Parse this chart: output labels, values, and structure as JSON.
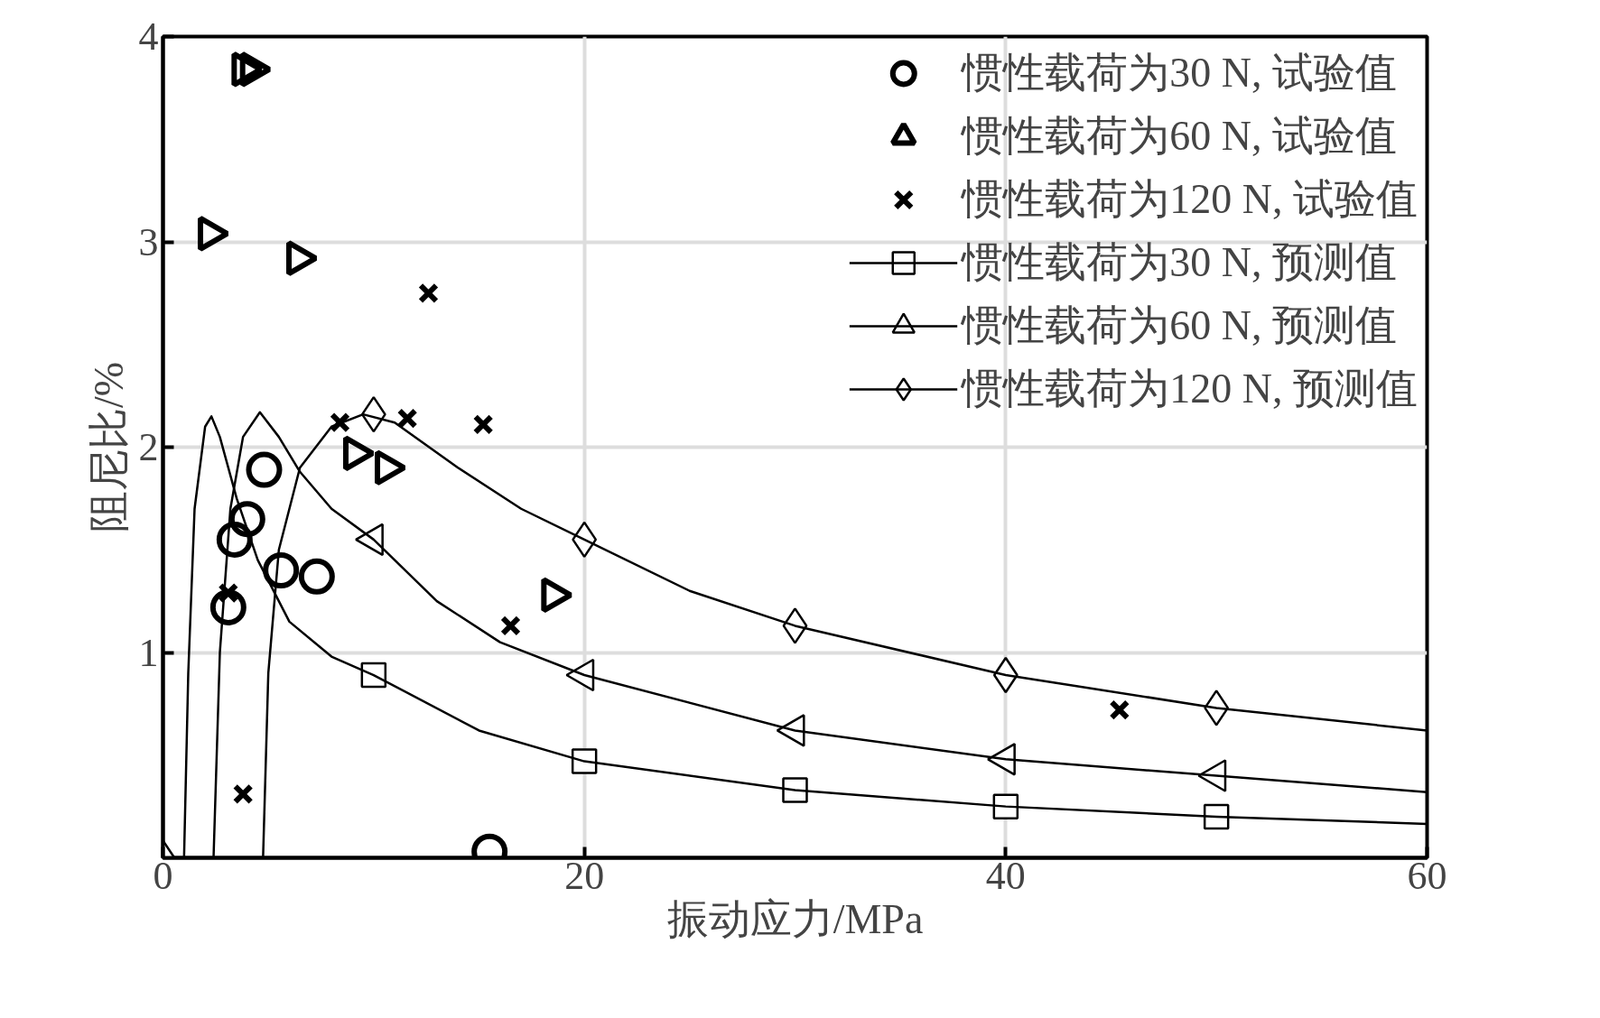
{
  "chart_data": {
    "type": "scatter",
    "xlabel": "振动应力/MPa",
    "ylabel": "阻尼比/%",
    "xlim": [
      0,
      60
    ],
    "ylim": [
      0,
      4
    ],
    "xticks": [
      0,
      20,
      40,
      60
    ],
    "yticks": [
      1,
      2,
      3,
      4
    ],
    "grid": true,
    "legend": "top right",
    "series": [
      {
        "name": "惯性载荷为30 N, 试验值",
        "marker": "circle",
        "color": "#000000",
        "x": [
          3.1,
          3.4,
          4.0,
          4.8,
          5.6,
          7.3,
          15.5
        ],
        "values": [
          1.22,
          1.55,
          1.65,
          1.89,
          1.4,
          1.37,
          0.03
        ]
      },
      {
        "name": "惯性载荷为60 N, 试验值",
        "marker": "triangle",
        "color": "#000000",
        "x": [
          3.8,
          4.2,
          2.2,
          6.4,
          9.1,
          10.6,
          18.5
        ],
        "values": [
          3.84,
          3.84,
          3.04,
          2.92,
          1.97,
          1.9,
          1.28
        ]
      },
      {
        "name": "惯性载荷为120 N, 试验值",
        "marker": "cross",
        "color": "#000000",
        "x": [
          3.1,
          3.8,
          8.4,
          11.6,
          12.6,
          15.2,
          16.5,
          45.4
        ],
        "values": [
          1.29,
          0.31,
          2.12,
          2.14,
          2.75,
          2.11,
          1.13,
          0.72
        ]
      },
      {
        "name": "惯性载荷为30 N, 预测值",
        "marker": "square",
        "color": "#000000",
        "x": [
          10,
          20,
          30,
          40,
          50
        ],
        "values": [
          0.89,
          0.47,
          0.33,
          0.25,
          0.2
        ]
      },
      {
        "type": "line",
        "marker": "none",
        "color": "#000000",
        "x": [
          1.0,
          1.2,
          1.5,
          2.0,
          2.3,
          2.7,
          3.5,
          4.5,
          6,
          8,
          10,
          15,
          20,
          30,
          40,
          50,
          60
        ],
        "values": [
          0,
          0.9,
          1.7,
          2.1,
          2.15,
          2.05,
          1.75,
          1.45,
          1.15,
          0.98,
          0.89,
          0.62,
          0.47,
          0.33,
          0.25,
          0.2,
          0.165
        ]
      },
      {
        "name": "惯性载荷为60 N, 预测值",
        "marker": "triangle",
        "color": "#000000",
        "x": [
          10,
          20,
          30,
          40,
          50
        ],
        "values": [
          1.55,
          0.89,
          0.62,
          0.48,
          0.4
        ]
      },
      {
        "type": "line",
        "marker": "none",
        "color": "#000000",
        "x": [
          2.4,
          2.7,
          3.2,
          3.8,
          4.6,
          5.5,
          6.5,
          8,
          10,
          13,
          16,
          20,
          30,
          40,
          50,
          60
        ],
        "values": [
          0,
          1.0,
          1.7,
          2.05,
          2.17,
          2.05,
          1.88,
          1.7,
          1.55,
          1.25,
          1.05,
          0.89,
          0.62,
          0.48,
          0.4,
          0.32
        ]
      },
      {
        "name": "惯性载荷为120 N, 预测值",
        "marker": "diamond",
        "color": "#000000",
        "x": [
          0,
          10,
          20,
          30,
          40,
          50
        ],
        "values": [
          0,
          2.16,
          1.55,
          1.13,
          0.89,
          0.73
        ]
      },
      {
        "type": "line",
        "marker": "none",
        "color": "#000000",
        "x": [
          4.75,
          5.0,
          5.5,
          6.5,
          8,
          9.5,
          11,
          14,
          17,
          20,
          25,
          30,
          40,
          50,
          60
        ],
        "values": [
          0,
          0.9,
          1.5,
          1.9,
          2.1,
          2.16,
          2.12,
          1.9,
          1.7,
          1.55,
          1.3,
          1.13,
          0.89,
          0.73,
          0.62
        ]
      }
    ]
  }
}
